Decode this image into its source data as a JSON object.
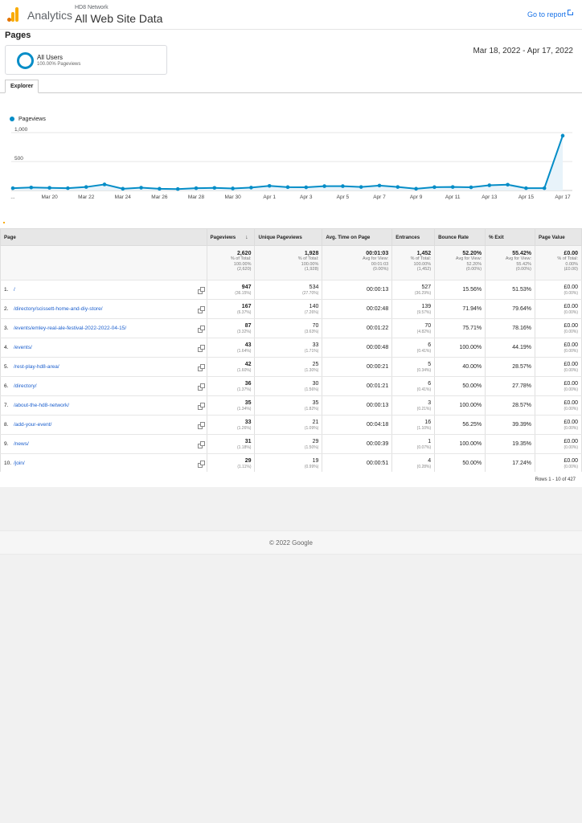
{
  "header": {
    "app_name": "Analytics",
    "account_name": "HD8 Network",
    "property_name": "All Web Site Data",
    "goto_report": "Go to report"
  },
  "page_title": "Pages",
  "segment": {
    "name": "All Users",
    "sub": "100.00% Pageviews"
  },
  "date_range": "Mar 18, 2022 - Apr 17, 2022",
  "tabs": [
    "Explorer"
  ],
  "chart_data": {
    "type": "line",
    "legend": "Pageviews",
    "series": [
      {
        "name": "Pageviews",
        "values": [
          40,
          52,
          46,
          40,
          60,
          105,
          30,
          48,
          30,
          25,
          40,
          45,
          35,
          50,
          80,
          58,
          55,
          75,
          75,
          60,
          85,
          60,
          30,
          58,
          60,
          55,
          90,
          100,
          40,
          40,
          947
        ]
      }
    ],
    "x_tick_labels": [
      "...",
      "Mar 20",
      "Mar 22",
      "Mar 24",
      "Mar 26",
      "Mar 28",
      "Mar 30",
      "Apr 1",
      "Apr 3",
      "Apr 5",
      "Apr 7",
      "Apr 9",
      "Apr 11",
      "Apr 13",
      "Apr 15",
      "Apr 17"
    ],
    "y_tick_labels": [
      "1,000",
      "500"
    ],
    "ylim": [
      0,
      1000
    ],
    "grid": true,
    "color": "#058dc7"
  },
  "table": {
    "headers": [
      "Page",
      "Pageviews",
      "Unique Pageviews",
      "Avg. Time on Page",
      "Entrances",
      "Bounce Rate",
      "% Exit",
      "Page Value"
    ],
    "sort_icon": "down-arrow-icon",
    "totals": [
      {
        "main": "2,620",
        "l1": "% of Total:",
        "l2": "100.00%",
        "l3": "(2,620)"
      },
      {
        "main": "1,928",
        "l1": "% of Total:",
        "l2": "100.00%",
        "l3": "(1,928)"
      },
      {
        "main": "00:01:03",
        "l1": "Avg for View:",
        "l2": "00:01:03",
        "l3": "(0.00%)"
      },
      {
        "main": "1,452",
        "l1": "% of Total:",
        "l2": "100.00%",
        "l3": "(1,452)"
      },
      {
        "main": "52.20%",
        "l1": "Avg for View:",
        "l2": "52.20%",
        "l3": "(0.00%)"
      },
      {
        "main": "55.42%",
        "l1": "Avg for View:",
        "l2": "55.42%",
        "l3": "(0.00%)"
      },
      {
        "main": "£0.00",
        "l1": "% of Total:",
        "l2": "0.00%",
        "l3": "(£0.00)"
      }
    ],
    "rows": [
      {
        "idx": "1.",
        "page": "/",
        "pv": "947",
        "pv_pct": "(36.15%)",
        "upv": "534",
        "upv_pct": "(27.70%)",
        "avg": "00:00:13",
        "ent": "527",
        "ent_pct": "(36.29%)",
        "bounce": "15.56%",
        "exit": "51.53%",
        "value": "£0.00",
        "value_pct": "(0.00%)"
      },
      {
        "idx": "2.",
        "page": "/directory/scissett-home-and-diy-store/",
        "pv": "167",
        "pv_pct": "(6.37%)",
        "upv": "140",
        "upv_pct": "(7.26%)",
        "avg": "00:02:48",
        "ent": "139",
        "ent_pct": "(9.57%)",
        "bounce": "71.94%",
        "exit": "79.64%",
        "value": "£0.00",
        "value_pct": "(0.00%)"
      },
      {
        "idx": "3.",
        "page": "/events/emley-real-ale-festival-2022-2022-04-15/",
        "pv": "87",
        "pv_pct": "(3.32%)",
        "upv": "70",
        "upv_pct": "(3.63%)",
        "avg": "00:01:22",
        "ent": "70",
        "ent_pct": "(4.82%)",
        "bounce": "75.71%",
        "exit": "78.16%",
        "value": "£0.00",
        "value_pct": "(0.00%)"
      },
      {
        "idx": "4.",
        "page": "/events/",
        "pv": "43",
        "pv_pct": "(1.64%)",
        "upv": "33",
        "upv_pct": "(1.71%)",
        "avg": "00:00:48",
        "ent": "6",
        "ent_pct": "(0.41%)",
        "bounce": "100.00%",
        "exit": "44.19%",
        "value": "£0.00",
        "value_pct": "(0.00%)"
      },
      {
        "idx": "5.",
        "page": "/rest-play-hd8-area/",
        "pv": "42",
        "pv_pct": "(1.60%)",
        "upv": "25",
        "upv_pct": "(1.30%)",
        "avg": "00:00:21",
        "ent": "5",
        "ent_pct": "(0.34%)",
        "bounce": "40.00%",
        "exit": "28.57%",
        "value": "£0.00",
        "value_pct": "(0.00%)"
      },
      {
        "idx": "6.",
        "page": "/directory/",
        "pv": "36",
        "pv_pct": "(1.37%)",
        "upv": "30",
        "upv_pct": "(1.56%)",
        "avg": "00:01:21",
        "ent": "6",
        "ent_pct": "(0.41%)",
        "bounce": "50.00%",
        "exit": "27.78%",
        "value": "£0.00",
        "value_pct": "(0.00%)"
      },
      {
        "idx": "7.",
        "page": "/about-the-hd8-network/",
        "pv": "35",
        "pv_pct": "(1.34%)",
        "upv": "35",
        "upv_pct": "(1.82%)",
        "avg": "00:00:13",
        "ent": "3",
        "ent_pct": "(0.21%)",
        "bounce": "100.00%",
        "exit": "28.57%",
        "value": "£0.00",
        "value_pct": "(0.00%)"
      },
      {
        "idx": "8.",
        "page": "/add-your-event/",
        "pv": "33",
        "pv_pct": "(1.26%)",
        "upv": "21",
        "upv_pct": "(1.09%)",
        "avg": "00:04:18",
        "ent": "16",
        "ent_pct": "(1.10%)",
        "bounce": "56.25%",
        "exit": "39.39%",
        "value": "£0.00",
        "value_pct": "(0.00%)"
      },
      {
        "idx": "9.",
        "page": "/news/",
        "pv": "31",
        "pv_pct": "(1.18%)",
        "upv": "29",
        "upv_pct": "(1.50%)",
        "avg": "00:00:39",
        "ent": "1",
        "ent_pct": "(0.07%)",
        "bounce": "100.00%",
        "exit": "19.35%",
        "value": "£0.00",
        "value_pct": "(0.00%)"
      },
      {
        "idx": "10.",
        "page": "/join/",
        "pv": "29",
        "pv_pct": "(1.11%)",
        "upv": "19",
        "upv_pct": "(0.99%)",
        "avg": "00:00:51",
        "ent": "4",
        "ent_pct": "(0.28%)",
        "bounce": "50.00%",
        "exit": "17.24%",
        "value": "£0.00",
        "value_pct": "(0.00%)"
      }
    ],
    "rows_info": "Rows 1 - 10 of 427"
  },
  "footer": "© 2022 Google"
}
